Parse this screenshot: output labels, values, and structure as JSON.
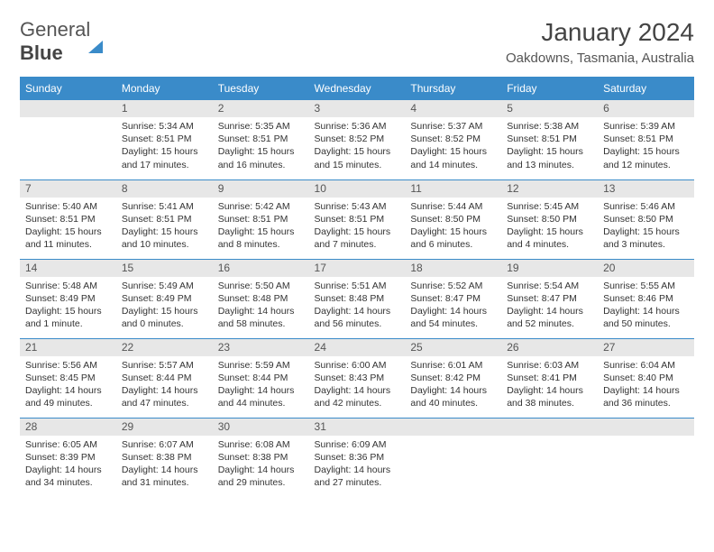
{
  "brand": {
    "part1": "General",
    "part2": "Blue"
  },
  "title": "January 2024",
  "subtitle": "Oakdowns, Tasmania, Australia",
  "colors": {
    "accent": "#3a8bc9",
    "daynum_bg": "#e7e7e7",
    "text": "#333333",
    "grid_border": "#3a8bc9"
  },
  "weekdays": [
    "Sunday",
    "Monday",
    "Tuesday",
    "Wednesday",
    "Thursday",
    "Friday",
    "Saturday"
  ],
  "weeks": [
    [
      {
        "n": "",
        "sr": "",
        "ss": "",
        "dl": ""
      },
      {
        "n": "1",
        "sr": "Sunrise: 5:34 AM",
        "ss": "Sunset: 8:51 PM",
        "dl": "Daylight: 15 hours and 17 minutes."
      },
      {
        "n": "2",
        "sr": "Sunrise: 5:35 AM",
        "ss": "Sunset: 8:51 PM",
        "dl": "Daylight: 15 hours and 16 minutes."
      },
      {
        "n": "3",
        "sr": "Sunrise: 5:36 AM",
        "ss": "Sunset: 8:52 PM",
        "dl": "Daylight: 15 hours and 15 minutes."
      },
      {
        "n": "4",
        "sr": "Sunrise: 5:37 AM",
        "ss": "Sunset: 8:52 PM",
        "dl": "Daylight: 15 hours and 14 minutes."
      },
      {
        "n": "5",
        "sr": "Sunrise: 5:38 AM",
        "ss": "Sunset: 8:51 PM",
        "dl": "Daylight: 15 hours and 13 minutes."
      },
      {
        "n": "6",
        "sr": "Sunrise: 5:39 AM",
        "ss": "Sunset: 8:51 PM",
        "dl": "Daylight: 15 hours and 12 minutes."
      }
    ],
    [
      {
        "n": "7",
        "sr": "Sunrise: 5:40 AM",
        "ss": "Sunset: 8:51 PM",
        "dl": "Daylight: 15 hours and 11 minutes."
      },
      {
        "n": "8",
        "sr": "Sunrise: 5:41 AM",
        "ss": "Sunset: 8:51 PM",
        "dl": "Daylight: 15 hours and 10 minutes."
      },
      {
        "n": "9",
        "sr": "Sunrise: 5:42 AM",
        "ss": "Sunset: 8:51 PM",
        "dl": "Daylight: 15 hours and 8 minutes."
      },
      {
        "n": "10",
        "sr": "Sunrise: 5:43 AM",
        "ss": "Sunset: 8:51 PM",
        "dl": "Daylight: 15 hours and 7 minutes."
      },
      {
        "n": "11",
        "sr": "Sunrise: 5:44 AM",
        "ss": "Sunset: 8:50 PM",
        "dl": "Daylight: 15 hours and 6 minutes."
      },
      {
        "n": "12",
        "sr": "Sunrise: 5:45 AM",
        "ss": "Sunset: 8:50 PM",
        "dl": "Daylight: 15 hours and 4 minutes."
      },
      {
        "n": "13",
        "sr": "Sunrise: 5:46 AM",
        "ss": "Sunset: 8:50 PM",
        "dl": "Daylight: 15 hours and 3 minutes."
      }
    ],
    [
      {
        "n": "14",
        "sr": "Sunrise: 5:48 AM",
        "ss": "Sunset: 8:49 PM",
        "dl": "Daylight: 15 hours and 1 minute."
      },
      {
        "n": "15",
        "sr": "Sunrise: 5:49 AM",
        "ss": "Sunset: 8:49 PM",
        "dl": "Daylight: 15 hours and 0 minutes."
      },
      {
        "n": "16",
        "sr": "Sunrise: 5:50 AM",
        "ss": "Sunset: 8:48 PM",
        "dl": "Daylight: 14 hours and 58 minutes."
      },
      {
        "n": "17",
        "sr": "Sunrise: 5:51 AM",
        "ss": "Sunset: 8:48 PM",
        "dl": "Daylight: 14 hours and 56 minutes."
      },
      {
        "n": "18",
        "sr": "Sunrise: 5:52 AM",
        "ss": "Sunset: 8:47 PM",
        "dl": "Daylight: 14 hours and 54 minutes."
      },
      {
        "n": "19",
        "sr": "Sunrise: 5:54 AM",
        "ss": "Sunset: 8:47 PM",
        "dl": "Daylight: 14 hours and 52 minutes."
      },
      {
        "n": "20",
        "sr": "Sunrise: 5:55 AM",
        "ss": "Sunset: 8:46 PM",
        "dl": "Daylight: 14 hours and 50 minutes."
      }
    ],
    [
      {
        "n": "21",
        "sr": "Sunrise: 5:56 AM",
        "ss": "Sunset: 8:45 PM",
        "dl": "Daylight: 14 hours and 49 minutes."
      },
      {
        "n": "22",
        "sr": "Sunrise: 5:57 AM",
        "ss": "Sunset: 8:44 PM",
        "dl": "Daylight: 14 hours and 47 minutes."
      },
      {
        "n": "23",
        "sr": "Sunrise: 5:59 AM",
        "ss": "Sunset: 8:44 PM",
        "dl": "Daylight: 14 hours and 44 minutes."
      },
      {
        "n": "24",
        "sr": "Sunrise: 6:00 AM",
        "ss": "Sunset: 8:43 PM",
        "dl": "Daylight: 14 hours and 42 minutes."
      },
      {
        "n": "25",
        "sr": "Sunrise: 6:01 AM",
        "ss": "Sunset: 8:42 PM",
        "dl": "Daylight: 14 hours and 40 minutes."
      },
      {
        "n": "26",
        "sr": "Sunrise: 6:03 AM",
        "ss": "Sunset: 8:41 PM",
        "dl": "Daylight: 14 hours and 38 minutes."
      },
      {
        "n": "27",
        "sr": "Sunrise: 6:04 AM",
        "ss": "Sunset: 8:40 PM",
        "dl": "Daylight: 14 hours and 36 minutes."
      }
    ],
    [
      {
        "n": "28",
        "sr": "Sunrise: 6:05 AM",
        "ss": "Sunset: 8:39 PM",
        "dl": "Daylight: 14 hours and 34 minutes."
      },
      {
        "n": "29",
        "sr": "Sunrise: 6:07 AM",
        "ss": "Sunset: 8:38 PM",
        "dl": "Daylight: 14 hours and 31 minutes."
      },
      {
        "n": "30",
        "sr": "Sunrise: 6:08 AM",
        "ss": "Sunset: 8:38 PM",
        "dl": "Daylight: 14 hours and 29 minutes."
      },
      {
        "n": "31",
        "sr": "Sunrise: 6:09 AM",
        "ss": "Sunset: 8:36 PM",
        "dl": "Daylight: 14 hours and 27 minutes."
      },
      {
        "n": "",
        "sr": "",
        "ss": "",
        "dl": ""
      },
      {
        "n": "",
        "sr": "",
        "ss": "",
        "dl": ""
      },
      {
        "n": "",
        "sr": "",
        "ss": "",
        "dl": ""
      }
    ]
  ]
}
